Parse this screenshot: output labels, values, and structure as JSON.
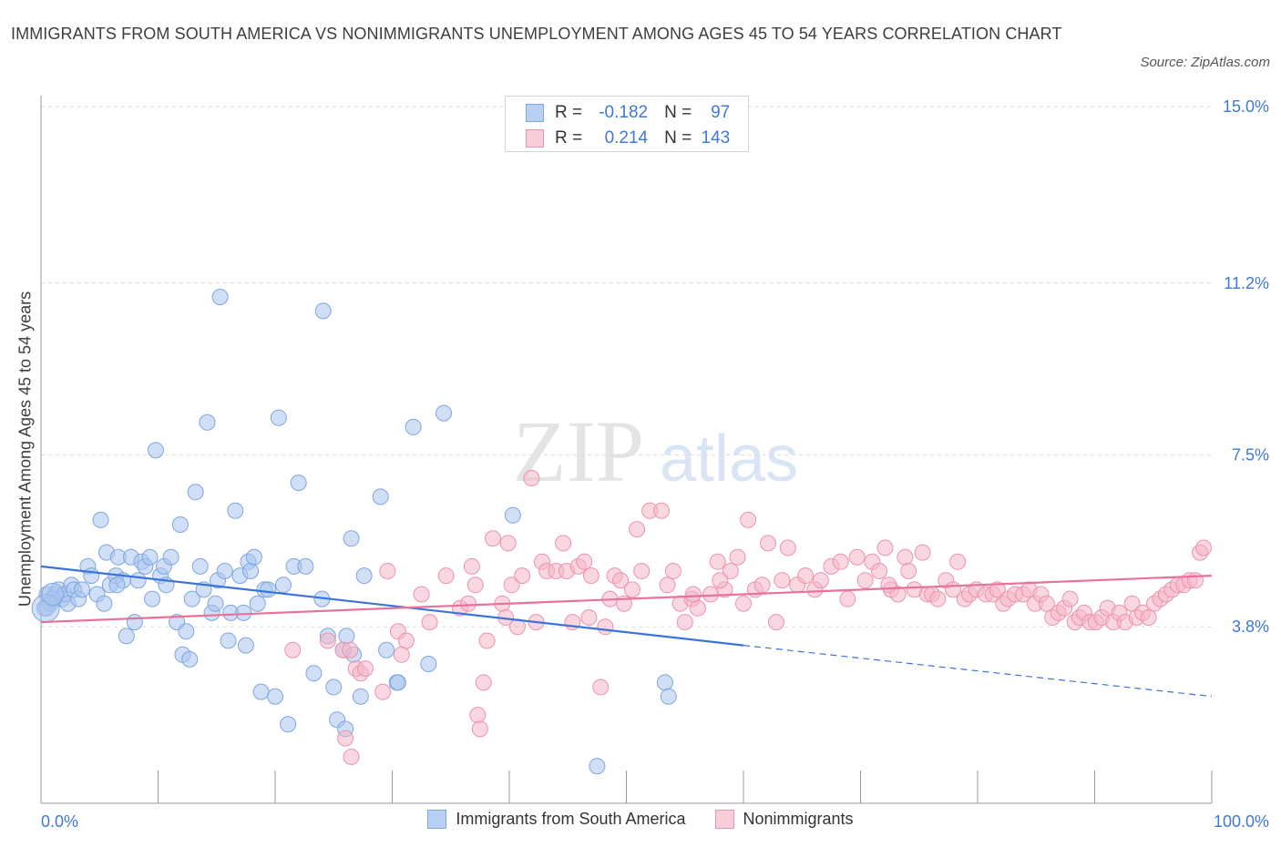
{
  "title": "IMMIGRANTS FROM SOUTH AMERICA VS NONIMMIGRANTS UNEMPLOYMENT AMONG AGES 45 TO 54 YEARS CORRELATION CHART",
  "source": "Source: ZipAtlas.com",
  "watermark": {
    "zip": "ZIP",
    "atlas": "atlas"
  },
  "legend_top": {
    "rows": [
      {
        "r_label": "R =",
        "r_value": "-0.182",
        "n_label": "N =",
        "n_value": "97",
        "color": "#a9c4ef"
      },
      {
        "r_label": "R =",
        "r_value": "0.214",
        "n_label": "N =",
        "n_value": "143",
        "color": "#f4b6c8"
      }
    ]
  },
  "legend_bottom": {
    "items": [
      {
        "label": "Immigrants from South America",
        "color": "#a9c4ef"
      },
      {
        "label": "Nonimmigrants",
        "color": "#f4b6c8"
      }
    ]
  },
  "chart_data": {
    "type": "scatter",
    "title": "IMMIGRANTS FROM SOUTH AMERICA VS NONIMMIGRANTS UNEMPLOYMENT AMONG AGES 45 TO 54 YEARS CORRELATION CHART",
    "xlabel": "",
    "ylabel": "Unemployment Among Ages 45 to 54 years",
    "xlim": [
      0,
      100
    ],
    "ylim": [
      0,
      15.0
    ],
    "x_tick_labels": [
      "0.0%",
      "100.0%"
    ],
    "y_ticks": [
      3.8,
      7.5,
      11.2,
      15.0
    ],
    "y_tick_labels": [
      "3.8%",
      "7.5%",
      "11.2%",
      "15.0%"
    ],
    "grid": "horizontal dashed",
    "series": [
      {
        "name": "Immigrants from South America",
        "color": "#a9c4ef",
        "stroke": "#7ea6e0",
        "trend": {
          "color": "#3a74d8",
          "x0": 0,
          "y0": 5.1,
          "x1": 60,
          "y1": 3.4,
          "dash_to_x": 100,
          "dash_y": 2.3
        },
        "points": [
          [
            0.3,
            4.2
          ],
          [
            0.5,
            4.5
          ],
          [
            0.8,
            4.3
          ],
          [
            1.2,
            4.5
          ],
          [
            1.5,
            4.6
          ],
          [
            1.8,
            4.4
          ],
          [
            2.0,
            4.5
          ],
          [
            2.3,
            4.3
          ],
          [
            2.6,
            4.7
          ],
          [
            2.8,
            4.6
          ],
          [
            3.2,
            4.4
          ],
          [
            3.5,
            4.6
          ],
          [
            4.0,
            5.1
          ],
          [
            4.3,
            4.9
          ],
          [
            4.8,
            4.5
          ],
          [
            5.1,
            6.1
          ],
          [
            5.4,
            4.3
          ],
          [
            5.6,
            5.4
          ],
          [
            5.9,
            4.7
          ],
          [
            6.4,
            4.9
          ],
          [
            6.6,
            5.3
          ],
          [
            7.0,
            4.8
          ],
          [
            7.3,
            3.6
          ],
          [
            7.7,
            5.3
          ],
          [
            8.0,
            3.9
          ],
          [
            8.3,
            4.8
          ],
          [
            8.6,
            5.2
          ],
          [
            8.9,
            5.1
          ],
          [
            9.3,
            5.3
          ],
          [
            9.5,
            4.4
          ],
          [
            9.8,
            7.6
          ],
          [
            10.2,
            4.9
          ],
          [
            10.5,
            5.1
          ],
          [
            10.7,
            4.7
          ],
          [
            11.1,
            5.3
          ],
          [
            11.6,
            3.9
          ],
          [
            11.9,
            6.0
          ],
          [
            12.1,
            3.2
          ],
          [
            12.4,
            3.7
          ],
          [
            12.7,
            3.1
          ],
          [
            12.9,
            4.4
          ],
          [
            13.2,
            6.7
          ],
          [
            13.6,
            5.1
          ],
          [
            13.9,
            4.6
          ],
          [
            14.2,
            8.2
          ],
          [
            14.6,
            4.1
          ],
          [
            14.9,
            4.3
          ],
          [
            15.1,
            4.8
          ],
          [
            15.3,
            10.9
          ],
          [
            15.7,
            5.0
          ],
          [
            16.0,
            3.5
          ],
          [
            16.2,
            4.1
          ],
          [
            16.6,
            6.3
          ],
          [
            17.0,
            4.9
          ],
          [
            17.3,
            4.1
          ],
          [
            17.5,
            3.4
          ],
          [
            17.7,
            5.2
          ],
          [
            17.9,
            5.0
          ],
          [
            18.2,
            5.3
          ],
          [
            18.5,
            4.3
          ],
          [
            18.8,
            2.4
          ],
          [
            19.1,
            4.6
          ],
          [
            19.4,
            4.6
          ],
          [
            20.0,
            2.3
          ],
          [
            20.3,
            8.3
          ],
          [
            20.7,
            4.7
          ],
          [
            21.1,
            1.7
          ],
          [
            21.6,
            5.1
          ],
          [
            22.0,
            6.9
          ],
          [
            22.6,
            5.1
          ],
          [
            23.3,
            2.8
          ],
          [
            24.0,
            4.4
          ],
          [
            24.1,
            10.6
          ],
          [
            24.5,
            3.6
          ],
          [
            25.0,
            2.5
          ],
          [
            25.3,
            1.8
          ],
          [
            25.8,
            3.3
          ],
          [
            26.0,
            1.6
          ],
          [
            26.1,
            3.6
          ],
          [
            26.5,
            5.7
          ],
          [
            26.7,
            3.2
          ],
          [
            27.3,
            2.3
          ],
          [
            27.6,
            4.9
          ],
          [
            29.0,
            6.6
          ],
          [
            29.5,
            3.3
          ],
          [
            30.4,
            2.6
          ],
          [
            30.5,
            2.6
          ],
          [
            31.8,
            8.1
          ],
          [
            33.1,
            3.0
          ],
          [
            34.4,
            8.4
          ],
          [
            40.3,
            6.2
          ],
          [
            47.5,
            0.8
          ],
          [
            53.3,
            2.6
          ],
          [
            53.6,
            2.3
          ],
          [
            0.5,
            4.2
          ],
          [
            1.0,
            4.4
          ],
          [
            6.5,
            4.7
          ]
        ]
      },
      {
        "name": "Nonimmigrants",
        "color": "#f4b6c8",
        "stroke": "#ec93ad",
        "trend": {
          "color": "#e8729a",
          "x0": 0,
          "y0": 3.9,
          "x1": 100,
          "y1": 4.9
        },
        "points": [
          [
            21.5,
            3.3
          ],
          [
            24.5,
            3.5
          ],
          [
            25.8,
            3.3
          ],
          [
            26.0,
            1.4
          ],
          [
            26.4,
            3.3
          ],
          [
            26.5,
            1.0
          ],
          [
            26.9,
            2.9
          ],
          [
            27.3,
            2.8
          ],
          [
            27.7,
            2.9
          ],
          [
            29.2,
            2.4
          ],
          [
            29.6,
            5.0
          ],
          [
            30.5,
            3.7
          ],
          [
            30.8,
            3.2
          ],
          [
            31.2,
            3.5
          ],
          [
            32.5,
            4.5
          ],
          [
            33.2,
            3.9
          ],
          [
            34.6,
            4.9
          ],
          [
            35.8,
            4.2
          ],
          [
            36.5,
            4.3
          ],
          [
            36.8,
            5.1
          ],
          [
            37.1,
            4.7
          ],
          [
            37.3,
            1.9
          ],
          [
            37.5,
            1.6
          ],
          [
            37.8,
            2.6
          ],
          [
            38.1,
            3.5
          ],
          [
            38.6,
            5.7
          ],
          [
            39.4,
            4.3
          ],
          [
            39.7,
            4.0
          ],
          [
            39.9,
            5.6
          ],
          [
            40.2,
            4.7
          ],
          [
            40.7,
            3.8
          ],
          [
            41.1,
            4.9
          ],
          [
            41.9,
            7.0
          ],
          [
            42.3,
            3.9
          ],
          [
            42.8,
            5.2
          ],
          [
            43.2,
            5.0
          ],
          [
            44.0,
            5.0
          ],
          [
            44.6,
            5.6
          ],
          [
            44.9,
            5.0
          ],
          [
            45.4,
            3.9
          ],
          [
            45.9,
            5.1
          ],
          [
            46.4,
            5.2
          ],
          [
            46.8,
            4.0
          ],
          [
            47.0,
            4.9
          ],
          [
            47.8,
            2.5
          ],
          [
            48.2,
            3.8
          ],
          [
            48.6,
            4.4
          ],
          [
            49.0,
            4.9
          ],
          [
            49.5,
            4.8
          ],
          [
            49.8,
            4.3
          ],
          [
            50.5,
            4.6
          ],
          [
            50.9,
            5.9
          ],
          [
            51.3,
            5.0
          ],
          [
            52.0,
            6.3
          ],
          [
            53.0,
            6.3
          ],
          [
            53.5,
            4.7
          ],
          [
            54.0,
            5.0
          ],
          [
            54.6,
            4.3
          ],
          [
            55.0,
            3.9
          ],
          [
            55.6,
            4.4
          ],
          [
            56.1,
            4.2
          ],
          [
            57.2,
            4.5
          ],
          [
            57.8,
            5.2
          ],
          [
            58.4,
            4.6
          ],
          [
            58.9,
            5.0
          ],
          [
            59.5,
            5.3
          ],
          [
            60.0,
            4.3
          ],
          [
            60.4,
            6.1
          ],
          [
            61.0,
            4.6
          ],
          [
            61.6,
            4.7
          ],
          [
            62.1,
            5.6
          ],
          [
            62.8,
            3.9
          ],
          [
            63.3,
            4.8
          ],
          [
            63.8,
            5.5
          ],
          [
            64.6,
            4.7
          ],
          [
            65.3,
            4.9
          ],
          [
            66.1,
            4.6
          ],
          [
            66.6,
            4.8
          ],
          [
            67.5,
            5.1
          ],
          [
            68.3,
            5.2
          ],
          [
            68.9,
            4.4
          ],
          [
            69.7,
            5.3
          ],
          [
            70.4,
            4.8
          ],
          [
            71.0,
            5.2
          ],
          [
            71.6,
            5.0
          ],
          [
            72.1,
            5.5
          ],
          [
            72.6,
            4.6
          ],
          [
            73.2,
            4.5
          ],
          [
            73.8,
            5.3
          ],
          [
            74.1,
            5.0
          ],
          [
            74.6,
            4.6
          ],
          [
            75.3,
            5.4
          ],
          [
            75.7,
            4.5
          ],
          [
            76.1,
            4.5
          ],
          [
            76.6,
            4.4
          ],
          [
            77.3,
            4.8
          ],
          [
            77.9,
            4.6
          ],
          [
            78.3,
            5.2
          ],
          [
            78.9,
            4.4
          ],
          [
            79.3,
            4.5
          ],
          [
            79.9,
            4.6
          ],
          [
            80.7,
            4.5
          ],
          [
            81.3,
            4.5
          ],
          [
            81.7,
            4.6
          ],
          [
            82.2,
            4.3
          ],
          [
            82.6,
            4.4
          ],
          [
            83.2,
            4.5
          ],
          [
            83.9,
            4.5
          ],
          [
            84.4,
            4.6
          ],
          [
            84.9,
            4.3
          ],
          [
            85.4,
            4.5
          ],
          [
            85.9,
            4.3
          ],
          [
            86.4,
            4.0
          ],
          [
            86.9,
            4.1
          ],
          [
            87.4,
            4.2
          ],
          [
            87.9,
            4.4
          ],
          [
            88.3,
            3.9
          ],
          [
            88.7,
            4.0
          ],
          [
            89.1,
            4.1
          ],
          [
            89.6,
            3.9
          ],
          [
            90.1,
            3.9
          ],
          [
            90.6,
            4.0
          ],
          [
            91.1,
            4.2
          ],
          [
            91.6,
            3.9
          ],
          [
            92.1,
            4.1
          ],
          [
            92.6,
            3.9
          ],
          [
            93.2,
            4.3
          ],
          [
            93.6,
            4.0
          ],
          [
            94.1,
            4.1
          ],
          [
            94.6,
            4.0
          ],
          [
            95.1,
            4.3
          ],
          [
            95.6,
            4.4
          ],
          [
            96.1,
            4.5
          ],
          [
            96.6,
            4.6
          ],
          [
            97.1,
            4.7
          ],
          [
            97.6,
            4.7
          ],
          [
            98.1,
            4.8
          ],
          [
            98.6,
            4.8
          ],
          [
            99.0,
            5.4
          ],
          [
            99.3,
            5.5
          ],
          [
            55.7,
            4.5
          ],
          [
            58.0,
            4.8
          ],
          [
            72.4,
            4.7
          ]
        ]
      }
    ]
  }
}
